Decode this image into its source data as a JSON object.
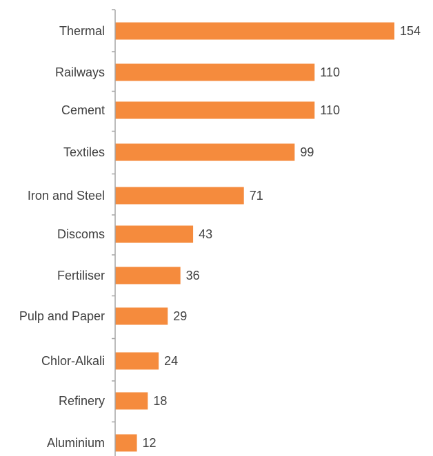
{
  "chart_data": {
    "type": "bar",
    "orientation": "horizontal",
    "categories": [
      "Thermal",
      "Railways",
      "Cement",
      "Textiles",
      "Iron and Steel",
      "Discoms",
      "Fertiliser",
      "Pulp and Paper",
      "Chlor-Alkali",
      "Refinery",
      "Aluminium"
    ],
    "values": [
      154,
      110,
      110,
      99,
      71,
      43,
      36,
      29,
      24,
      18,
      12
    ],
    "title": "",
    "xlabel": "",
    "ylabel": "",
    "xlim": [
      0,
      160
    ],
    "grid": false,
    "legend": "none",
    "bar_color": "#f58b3d",
    "axis_color": "#a6a6a6",
    "text_color": "#404040"
  }
}
